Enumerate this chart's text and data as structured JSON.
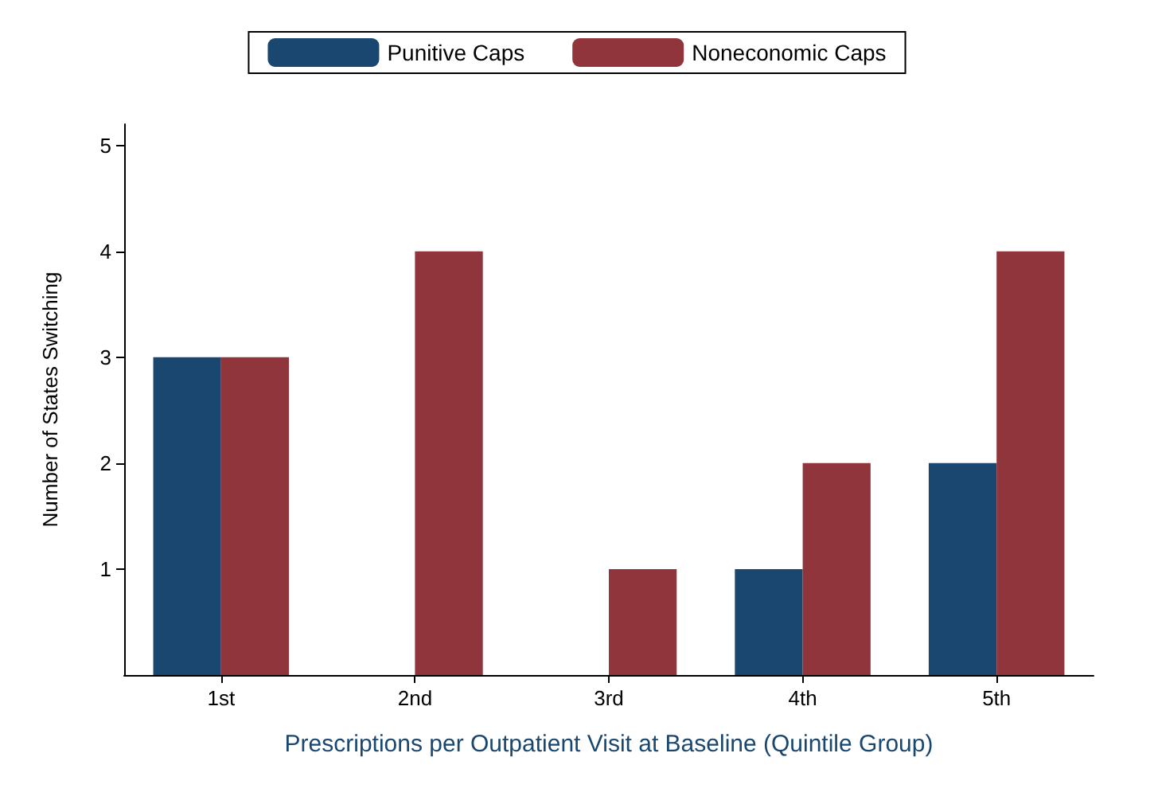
{
  "chart_data": {
    "type": "bar",
    "xlabel": "Prescriptions per Outpatient Visit at Baseline (Quintile Group)",
    "ylabel": "Number of States Switching",
    "categories": [
      "1st",
      "2nd",
      "3rd",
      "4th",
      "5th"
    ],
    "series": [
      {
        "name": "Punitive Caps",
        "color": "#1a476f",
        "values": [
          3,
          0,
          0,
          1,
          2
        ]
      },
      {
        "name": "Noneconomic Caps",
        "color": "#90353b",
        "values": [
          3,
          4,
          1,
          2,
          4
        ]
      }
    ],
    "ylim": [
      0,
      5.2
    ],
    "yticks": [
      1,
      2,
      3,
      4,
      5
    ],
    "grid": false,
    "legend": "top"
  }
}
